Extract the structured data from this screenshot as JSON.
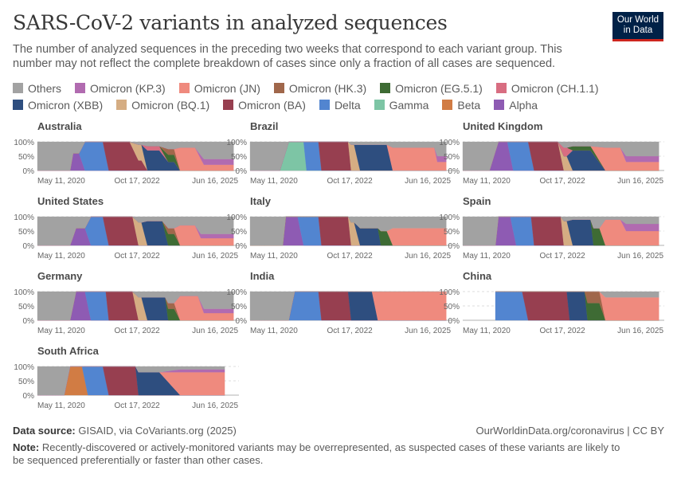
{
  "header": {
    "title": "SARS-CoV-2 variants in analyzed sequences",
    "subtitle": "The number of analyzed sequences in the preceding two weeks that correspond to each variant group. This number may not reflect the complete breakdown of cases since only a fraction of all cases are sequenced.",
    "logo_line1": "Our World",
    "logo_line2": "in Data"
  },
  "footer": {
    "source_label": "Data source:",
    "source_text": "GISAID, via CoVariants.org (2025)",
    "link_text": "OurWorldinData.org/coronavirus | CC BY",
    "note_label": "Note:",
    "note_text": "Recently-discovered or actively-monitored variants may be overrepresented, as suspected cases of these variants are likely to be sequenced preferentially or faster than other cases."
  },
  "chart_data": {
    "type": "area",
    "stacked": true,
    "y_unit": "%",
    "ylim": [
      0,
      100
    ],
    "y_ticks": [
      "0%",
      "50%",
      "100%"
    ],
    "x_ticks": [
      "May 11, 2020",
      "Oct 17, 2022",
      "Jun 16, 2025"
    ],
    "x_range": [
      "2020-01-01",
      "2025-07-31"
    ],
    "legend": [
      {
        "name": "Others",
        "color": "#a2a2a2"
      },
      {
        "name": "Omicron (KP.3)",
        "color": "#b16bb0"
      },
      {
        "name": "Omicron (JN)",
        "color": "#ef8a7e"
      },
      {
        "name": "Omicron (HK.3)",
        "color": "#a0674b"
      },
      {
        "name": "Omicron (EG.5.1)",
        "color": "#3e6b34"
      },
      {
        "name": "Omicron (CH.1.1)",
        "color": "#d86d81"
      },
      {
        "name": "Omicron (XBB)",
        "color": "#2e4e7f"
      },
      {
        "name": "Omicron (BQ.1)",
        "color": "#d5ad83"
      },
      {
        "name": "Omicron (BA)",
        "color": "#973f50"
      },
      {
        "name": "Delta",
        "color": "#5285d0"
      },
      {
        "name": "Gamma",
        "color": "#7dc5a5"
      },
      {
        "name": "Beta",
        "color": "#d17c44"
      },
      {
        "name": "Alpha",
        "color": "#8e5bb3"
      }
    ],
    "series_order": [
      "Alpha",
      "Beta",
      "Gamma",
      "Delta",
      "Omicron (BA)",
      "Omicron (BQ.1)",
      "Omicron (XBB)",
      "Omicron (CH.1.1)",
      "Omicron (EG.5.1)",
      "Omicron (HK.3)",
      "Omicron (JN)",
      "Omicron (KP.3)",
      "Others"
    ],
    "panels": [
      {
        "country": "Australia",
        "start": "2020-01",
        "end": "2025-07",
        "periods": [
          {
            "from": "2020-01",
            "to": "2020-12",
            "shares": {
              "Others": 100
            }
          },
          {
            "from": "2021-01",
            "to": "2021-03",
            "shares": {
              "Alpha": 60,
              "Others": 40
            }
          },
          {
            "from": "2021-05",
            "to": "2021-11",
            "shares": {
              "Delta": 100
            }
          },
          {
            "from": "2022-01",
            "to": "2022-08",
            "shares": {
              "Omicron (BA)": 100
            }
          },
          {
            "from": "2022-11",
            "to": "2022-12",
            "shares": {
              "Omicron (BQ.1)": 55,
              "Omicron (BA)": 35,
              "Others": 10
            }
          },
          {
            "from": "2023-02",
            "to": "2023-06",
            "shares": {
              "Omicron (XBB)": 70,
              "Omicron (CH.1.1)": 15,
              "Others": 15
            }
          },
          {
            "from": "2023-09",
            "to": "2023-11",
            "shares": {
              "Omicron (EG.5.1)": 25,
              "Omicron (HK.3)": 20,
              "Omicron (XBB)": 30,
              "Others": 25
            }
          },
          {
            "from": "2024-01",
            "to": "2024-06",
            "shares": {
              "Omicron (JN)": 80,
              "Others": 20
            }
          },
          {
            "from": "2024-09",
            "to": "2025-07",
            "shares": {
              "Others": 60,
              "Omicron (KP.3)": 20,
              "Omicron (JN)": 20
            }
          }
        ]
      },
      {
        "country": "Brazil",
        "start": "2020-01",
        "end": "2025-07",
        "periods": [
          {
            "from": "2020-01",
            "to": "2020-11",
            "shares": {
              "Others": 100
            }
          },
          {
            "from": "2021-02",
            "to": "2021-07",
            "shares": {
              "Gamma": 100
            }
          },
          {
            "from": "2021-08",
            "to": "2021-12",
            "shares": {
              "Delta": 100
            }
          },
          {
            "from": "2022-01",
            "to": "2022-10",
            "shares": {
              "Omicron (BA)": 100
            }
          },
          {
            "from": "2022-11",
            "to": "2022-12",
            "shares": {
              "Omicron (BQ.1)": 90,
              "Others": 10
            }
          },
          {
            "from": "2023-02",
            "to": "2023-11",
            "shares": {
              "Omicron (XBB)": 90,
              "Others": 10
            }
          },
          {
            "from": "2024-01",
            "to": "2025-03",
            "shares": {
              "Omicron (JN)": 80,
              "Others": 20
            }
          },
          {
            "from": "2025-04",
            "to": "2025-07",
            "shares": {
              "Others": 50,
              "Omicron (JN)": 30,
              "Omicron (KP.3)": 20
            }
          }
        ]
      },
      {
        "country": "United Kingdom",
        "start": "2020-01",
        "end": "2025-07",
        "periods": [
          {
            "from": "2020-01",
            "to": "2020-10",
            "shares": {
              "Others": 100
            }
          },
          {
            "from": "2021-01",
            "to": "2021-04",
            "shares": {
              "Alpha": 100
            }
          },
          {
            "from": "2021-06",
            "to": "2021-11",
            "shares": {
              "Delta": 100
            }
          },
          {
            "from": "2022-01",
            "to": "2022-09",
            "shares": {
              "Omicron (BA)": 100
            }
          },
          {
            "from": "2022-11",
            "to": "2022-12",
            "shares": {
              "Omicron (BQ.1)": 50,
              "Omicron (CH.1.1)": 30,
              "Others": 20
            }
          },
          {
            "from": "2023-02",
            "to": "2023-08",
            "shares": {
              "Omicron (XBB)": 70,
              "Omicron (EG.5.1)": 15,
              "Others": 15
            }
          },
          {
            "from": "2024-01",
            "to": "2024-06",
            "shares": {
              "Omicron (JN)": 80,
              "Others": 20
            }
          },
          {
            "from": "2024-08",
            "to": "2025-07",
            "shares": {
              "Others": 50,
              "Omicron (KP.3)": 20,
              "Omicron (JN)": 30
            }
          }
        ]
      },
      {
        "country": "United States",
        "start": "2020-01",
        "end": "2025-07",
        "periods": [
          {
            "from": "2020-01",
            "to": "2020-12",
            "shares": {
              "Others": 100
            }
          },
          {
            "from": "2021-02",
            "to": "2021-05",
            "shares": {
              "Alpha": 60,
              "Others": 40
            }
          },
          {
            "from": "2021-07",
            "to": "2021-11",
            "shares": {
              "Delta": 100
            }
          },
          {
            "from": "2022-01",
            "to": "2022-09",
            "shares": {
              "Omicron (BA)": 100
            }
          },
          {
            "from": "2022-11",
            "to": "2022-12",
            "shares": {
              "Omicron (BQ.1)": 80,
              "Others": 20
            }
          },
          {
            "from": "2023-02",
            "to": "2023-07",
            "shares": {
              "Omicron (XBB)": 85,
              "Others": 15
            }
          },
          {
            "from": "2023-09",
            "to": "2023-11",
            "shares": {
              "Omicron (EG.5.1)": 40,
              "Omicron (HK.3)": 20,
              "Others": 40
            }
          },
          {
            "from": "2024-01",
            "to": "2024-06",
            "shares": {
              "Omicron (JN)": 70,
              "Others": 30
            }
          },
          {
            "from": "2024-08",
            "to": "2025-07",
            "shares": {
              "Others": 60,
              "Omicron (JN)": 25,
              "Omicron (KP.3)": 15
            }
          }
        ]
      },
      {
        "country": "Italy",
        "start": "2020-01",
        "end": "2025-07",
        "periods": [
          {
            "from": "2020-01",
            "to": "2020-12",
            "shares": {
              "Others": 100
            }
          },
          {
            "from": "2021-01",
            "to": "2021-05",
            "shares": {
              "Alpha": 100
            }
          },
          {
            "from": "2021-07",
            "to": "2021-12",
            "shares": {
              "Delta": 100
            }
          },
          {
            "from": "2022-01",
            "to": "2022-10",
            "shares": {
              "Omicron (BA)": 100
            }
          },
          {
            "from": "2022-11",
            "to": "2022-12",
            "shares": {
              "Omicron (BQ.1)": 80,
              "Others": 20
            }
          },
          {
            "from": "2023-02",
            "to": "2023-08",
            "shares": {
              "Omicron (XBB)": 60,
              "Others": 40
            }
          },
          {
            "from": "2023-09",
            "to": "2023-11",
            "shares": {
              "Omicron (EG.5.1)": 50,
              "Others": 50
            }
          },
          {
            "from": "2024-01",
            "to": "2025-07",
            "shares": {
              "Omicron (JN)": 60,
              "Others": 40
            }
          }
        ]
      },
      {
        "country": "Spain",
        "start": "2020-01",
        "end": "2025-07",
        "periods": [
          {
            "from": "2020-01",
            "to": "2020-12",
            "shares": {
              "Others": 100
            }
          },
          {
            "from": "2021-01",
            "to": "2021-05",
            "shares": {
              "Alpha": 100
            }
          },
          {
            "from": "2021-07",
            "to": "2021-12",
            "shares": {
              "Delta": 100
            }
          },
          {
            "from": "2022-01",
            "to": "2022-10",
            "shares": {
              "Omicron (BA)": 100
            }
          },
          {
            "from": "2022-11",
            "to": "2022-12",
            "shares": {
              "Omicron (BQ.1)": 85,
              "Others": 15
            }
          },
          {
            "from": "2023-02",
            "to": "2023-08",
            "shares": {
              "Omicron (XBB)": 90,
              "Others": 10
            }
          },
          {
            "from": "2023-09",
            "to": "2023-11",
            "shares": {
              "Omicron (EG.5.1)": 60,
              "Others": 40
            }
          },
          {
            "from": "2024-01",
            "to": "2024-06",
            "shares": {
              "Omicron (JN)": 90,
              "Others": 10
            }
          },
          {
            "from": "2024-08",
            "to": "2025-07",
            "shares": {
              "Omicron (JN)": 50,
              "Omicron (KP.3)": 25,
              "Others": 25
            }
          }
        ]
      },
      {
        "country": "Germany",
        "start": "2020-01",
        "end": "2025-07",
        "periods": [
          {
            "from": "2020-01",
            "to": "2020-12",
            "shares": {
              "Others": 100
            }
          },
          {
            "from": "2021-02",
            "to": "2021-05",
            "shares": {
              "Alpha": 100
            }
          },
          {
            "from": "2021-07",
            "to": "2021-12",
            "shares": {
              "Delta": 100
            }
          },
          {
            "from": "2022-01",
            "to": "2022-09",
            "shares": {
              "Omicron (BA)": 100
            }
          },
          {
            "from": "2022-11",
            "to": "2022-12",
            "shares": {
              "Omicron (BQ.1)": 80,
              "Others": 20
            }
          },
          {
            "from": "2023-02",
            "to": "2023-08",
            "shares": {
              "Omicron (XBB)": 80,
              "Others": 20
            }
          },
          {
            "from": "2023-09",
            "to": "2023-11",
            "shares": {
              "Omicron (EG.5.1)": 40,
              "Omicron (HK.3)": 20,
              "Others": 40
            }
          },
          {
            "from": "2024-01",
            "to": "2024-07",
            "shares": {
              "Omicron (JN)": 85,
              "Others": 15
            }
          },
          {
            "from": "2024-09",
            "to": "2025-07",
            "shares": {
              "Others": 60,
              "Omicron (JN)": 25,
              "Omicron (KP.3)": 15
            }
          }
        ]
      },
      {
        "country": "India",
        "start": "2020-01",
        "end": "2025-07",
        "periods": [
          {
            "from": "2020-01",
            "to": "2021-02",
            "shares": {
              "Others": 100
            }
          },
          {
            "from": "2021-04",
            "to": "2021-12",
            "shares": {
              "Delta": 100
            }
          },
          {
            "from": "2022-01",
            "to": "2022-10",
            "shares": {
              "Omicron (BA)": 100
            }
          },
          {
            "from": "2022-11",
            "to": "2023-06",
            "shares": {
              "Omicron (XBB)": 100
            }
          },
          {
            "from": "2023-08",
            "to": "2025-07",
            "shares": {
              "Omicron (JN)": 100
            }
          }
        ]
      },
      {
        "country": "China",
        "start": "2020-12",
        "end": "2025-07",
        "periods": [
          {
            "from": "2020-12",
            "to": "2021-09",
            "shares": {
              "Delta": 100
            }
          },
          {
            "from": "2021-11",
            "to": "2022-12",
            "shares": {
              "Omicron (BA)": 100
            }
          },
          {
            "from": "2023-01",
            "to": "2023-06",
            "shares": {
              "Omicron (XBB)": 100
            }
          },
          {
            "from": "2023-07",
            "to": "2023-11",
            "shares": {
              "Omicron (EG.5.1)": 60,
              "Omicron (HK.3)": 40
            }
          },
          {
            "from": "2024-01",
            "to": "2025-07",
            "shares": {
              "Omicron (JN)": 80,
              "Others": 20
            }
          }
        ]
      },
      {
        "country": "South Africa",
        "start": "2020-01",
        "end": "2025-04",
        "periods": [
          {
            "from": "2020-01",
            "to": "2020-10",
            "shares": {
              "Others": 100
            }
          },
          {
            "from": "2020-12",
            "to": "2021-04",
            "shares": {
              "Beta": 100
            }
          },
          {
            "from": "2021-06",
            "to": "2021-11",
            "shares": {
              "Delta": 100
            }
          },
          {
            "from": "2022-01",
            "to": "2022-10",
            "shares": {
              "Omicron (BA)": 100
            }
          },
          {
            "from": "2022-11",
            "to": "2023-06",
            "shares": {
              "Omicron (XBB)": 80,
              "Others": 20
            }
          },
          {
            "from": "2024-01",
            "to": "2025-04",
            "shares": {
              "Omicron (JN)": 80,
              "Omicron (KP.3)": 10,
              "Others": 10
            }
          }
        ]
      }
    ]
  }
}
